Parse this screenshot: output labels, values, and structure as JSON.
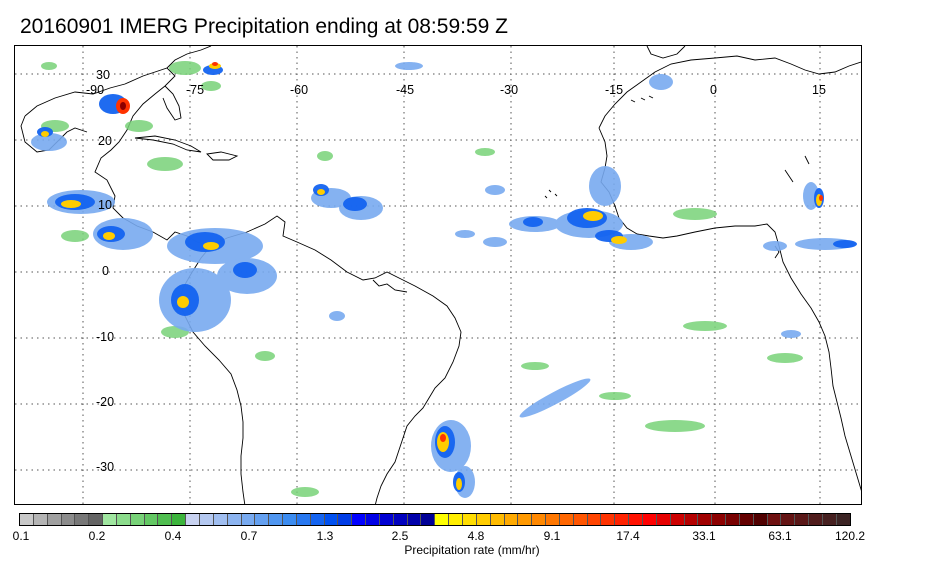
{
  "title": "20160901 IMERG Precipitation ending at 08:59:59 Z",
  "map": {
    "lon_labels": [
      "-90",
      "-75",
      "-60",
      "-45",
      "-30",
      "-15",
      "0",
      "15"
    ],
    "lat_labels": [
      "30",
      "20",
      "10",
      "0",
      "-10",
      "-20",
      "-30"
    ],
    "gridline_style": "dotted",
    "coastline_color": "#000000"
  },
  "colorbar": {
    "label": "Precipitation rate (mm/hr)",
    "tick_labels": [
      "0.1",
      "0.2",
      "0.4",
      "0.7",
      "1.3",
      "2.5",
      "4.8",
      "9.1",
      "17.4",
      "33.1",
      "63.1",
      "120.2"
    ],
    "colors": [
      "#c8c8c8",
      "#b4b4b4",
      "#a0a0a0",
      "#8c8c8c",
      "#787878",
      "#646464",
      "#a0e6a0",
      "#8cdc8c",
      "#78d278",
      "#64c864",
      "#50be50",
      "#3cb43c",
      "#c8d2f0",
      "#b4c8f0",
      "#a0bef0",
      "#8cb4f0",
      "#78aaf0",
      "#64a0f0",
      "#5096f0",
      "#3c8cf0",
      "#2878f0",
      "#1464f0",
      "#0050f0",
      "#003ce6",
      "#0000ff",
      "#0000e6",
      "#0000d2",
      "#0000be",
      "#0000aa",
      "#000096",
      "#ffff00",
      "#ffee00",
      "#ffdd00",
      "#ffcc00",
      "#ffbb00",
      "#ffaa00",
      "#ff9900",
      "#ff8800",
      "#ff7700",
      "#ff6600",
      "#ff5500",
      "#ff4400",
      "#ff3300",
      "#ff2200",
      "#ff1100",
      "#ff0000",
      "#e60000",
      "#cc0000",
      "#b40000",
      "#a00000",
      "#8c0000",
      "#780000",
      "#640000",
      "#500000",
      "#6e1010",
      "#641414",
      "#5a1818",
      "#501c1c",
      "#462020",
      "#3c2424"
    ]
  }
}
